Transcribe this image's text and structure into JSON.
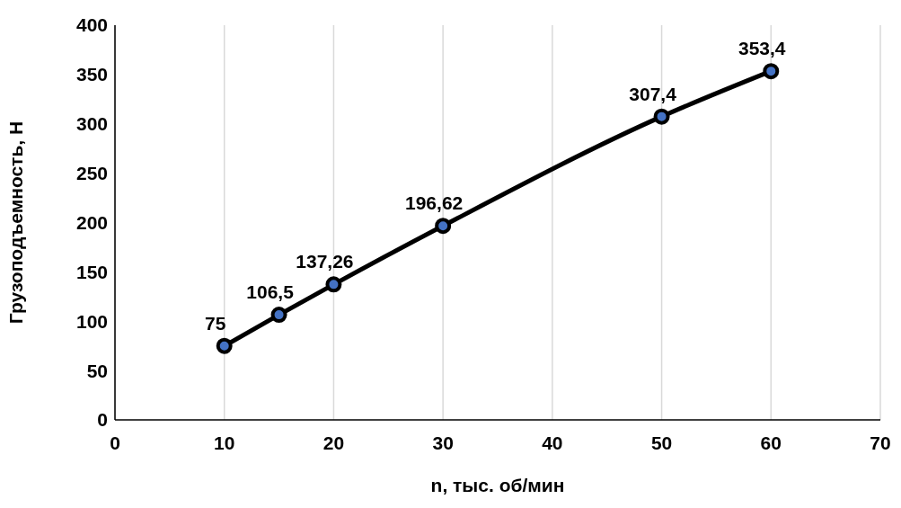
{
  "chart_data": {
    "type": "line",
    "xlabel": "n, тыс. об/мин",
    "ylabel": "Грузоподъемность, Н",
    "x": [
      10,
      15,
      20,
      30,
      50,
      60
    ],
    "series": [
      {
        "color": "#000000",
        "values": [
          75,
          106.5,
          137.26,
          196.62,
          307.4,
          353.4
        ],
        "value_labels": [
          "75",
          "106,5",
          "137,26",
          "196,62",
          "307,4",
          "353,4"
        ]
      }
    ],
    "xlim": [
      0,
      70
    ],
    "xticks": [
      0,
      10,
      20,
      30,
      40,
      50,
      60,
      70
    ],
    "ylim": [
      0,
      400
    ],
    "yticks": [
      0,
      50,
      100,
      150,
      200,
      250,
      300,
      350,
      400
    ],
    "grid": "x",
    "marker": "circle",
    "line_style": "solid"
  }
}
